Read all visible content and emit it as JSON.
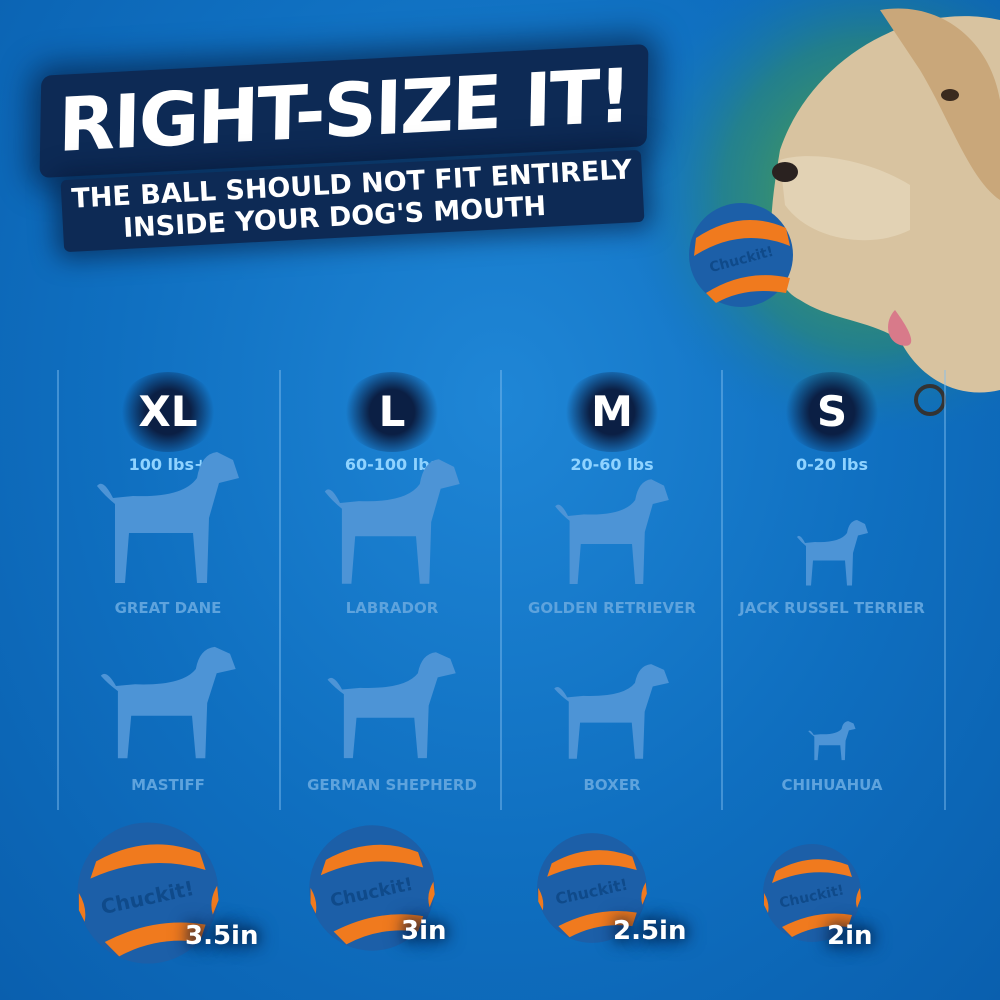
{
  "headline": "RIGHT-SIZE IT!",
  "subheadline_line1": "THE BALL SHOULD NOT FIT ENTIRELY",
  "subheadline_line2": "INSIDE YOUR DOG'S MOUTH",
  "brand_logo": "Chuckit!",
  "colors": {
    "background": "#0f6fc0",
    "ball_blue": "#1c5fa8",
    "ball_orange": "#f07a1e",
    "silhouette": "#4d94d6",
    "weight_text": "#8fd3ff"
  },
  "columns": [
    {
      "size": "XL",
      "weight": "100 lbs+",
      "breeds": [
        "GREAT DANE",
        "MASTIFF"
      ],
      "ball_size": "3.5in"
    },
    {
      "size": "L",
      "weight": "60-100 lbs",
      "breeds": [
        "LABRADOR",
        "GERMAN SHEPHERD"
      ],
      "ball_size": "3in"
    },
    {
      "size": "M",
      "weight": "20-60 lbs",
      "breeds": [
        "GOLDEN RETRIEVER",
        "BOXER"
      ],
      "ball_size": "2.5in"
    },
    {
      "size": "S",
      "weight": "0-20 lbs",
      "breeds": [
        "JACK RUSSEL TERRIER",
        "CHIHUAHUA"
      ],
      "ball_size": "2in"
    }
  ]
}
